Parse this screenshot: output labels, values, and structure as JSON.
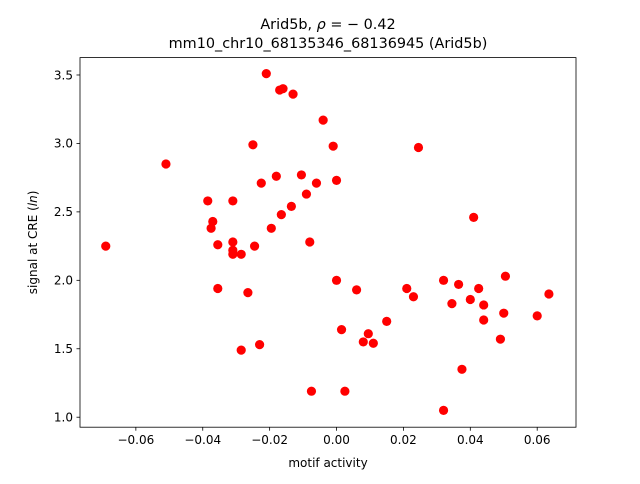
{
  "chart_data": {
    "type": "scatter",
    "title": "Arid5b, ρ = − 0.42",
    "subtitle": "mm10_chr10_68135346_68136945 (Arid5b)",
    "xlabel": "motif activity",
    "ylabel": "signal at CRE (ln)",
    "xlim": [
      -0.0767,
      0.0716
    ],
    "ylim": [
      0.927,
      3.627
    ],
    "xticks": [
      -0.06,
      -0.04,
      -0.02,
      0.0,
      0.02,
      0.04,
      0.06
    ],
    "xtick_labels": [
      "−0.06",
      "−0.04",
      "−0.02",
      "0.00",
      "0.02",
      "0.04",
      "0.06"
    ],
    "yticks": [
      1.0,
      1.5,
      2.0,
      2.5,
      3.0,
      3.5
    ],
    "ytick_labels": [
      "1.0",
      "1.5",
      "2.0",
      "2.5",
      "3.0",
      "3.5"
    ],
    "grid": false,
    "marker_color": "#ff0000",
    "points": [
      {
        "x": -0.069,
        "y": 2.25
      },
      {
        "x": -0.051,
        "y": 2.85
      },
      {
        "x": -0.0385,
        "y": 2.58
      },
      {
        "x": -0.0375,
        "y": 2.38
      },
      {
        "x": -0.037,
        "y": 2.43
      },
      {
        "x": -0.0355,
        "y": 2.26
      },
      {
        "x": -0.0355,
        "y": 1.94
      },
      {
        "x": -0.031,
        "y": 2.58
      },
      {
        "x": -0.031,
        "y": 2.28
      },
      {
        "x": -0.031,
        "y": 2.22
      },
      {
        "x": -0.031,
        "y": 2.19
      },
      {
        "x": -0.0285,
        "y": 2.19
      },
      {
        "x": -0.0285,
        "y": 1.49
      },
      {
        "x": -0.0265,
        "y": 1.91
      },
      {
        "x": -0.025,
        "y": 2.99
      },
      {
        "x": -0.0245,
        "y": 2.25
      },
      {
        "x": -0.023,
        "y": 1.53
      },
      {
        "x": -0.0225,
        "y": 2.71
      },
      {
        "x": -0.021,
        "y": 3.51
      },
      {
        "x": -0.0195,
        "y": 2.38
      },
      {
        "x": -0.018,
        "y": 2.76
      },
      {
        "x": -0.017,
        "y": 3.39
      },
      {
        "x": -0.0165,
        "y": 2.48
      },
      {
        "x": -0.016,
        "y": 3.4
      },
      {
        "x": -0.0135,
        "y": 2.54
      },
      {
        "x": -0.013,
        "y": 3.36
      },
      {
        "x": -0.0105,
        "y": 2.77
      },
      {
        "x": -0.009,
        "y": 2.63
      },
      {
        "x": -0.008,
        "y": 2.28
      },
      {
        "x": -0.0075,
        "y": 1.19
      },
      {
        "x": -0.006,
        "y": 2.71
      },
      {
        "x": -0.004,
        "y": 3.17
      },
      {
        "x": -0.001,
        "y": 2.98
      },
      {
        "x": 0.0,
        "y": 2.73
      },
      {
        "x": 0.0,
        "y": 2.0
      },
      {
        "x": 0.0015,
        "y": 1.64
      },
      {
        "x": 0.0025,
        "y": 1.19
      },
      {
        "x": 0.006,
        "y": 1.93
      },
      {
        "x": 0.008,
        "y": 1.55
      },
      {
        "x": 0.0095,
        "y": 1.61
      },
      {
        "x": 0.011,
        "y": 1.54
      },
      {
        "x": 0.015,
        "y": 1.7
      },
      {
        "x": 0.021,
        "y": 1.94
      },
      {
        "x": 0.023,
        "y": 1.88
      },
      {
        "x": 0.0245,
        "y": 2.97
      },
      {
        "x": 0.032,
        "y": 2.0
      },
      {
        "x": 0.032,
        "y": 1.05
      },
      {
        "x": 0.0345,
        "y": 1.83
      },
      {
        "x": 0.0365,
        "y": 1.97
      },
      {
        "x": 0.0375,
        "y": 1.35
      },
      {
        "x": 0.04,
        "y": 1.86
      },
      {
        "x": 0.041,
        "y": 2.46
      },
      {
        "x": 0.0425,
        "y": 1.94
      },
      {
        "x": 0.044,
        "y": 1.82
      },
      {
        "x": 0.044,
        "y": 1.71
      },
      {
        "x": 0.049,
        "y": 1.57
      },
      {
        "x": 0.05,
        "y": 1.76
      },
      {
        "x": 0.0505,
        "y": 2.03
      },
      {
        "x": 0.06,
        "y": 1.74
      },
      {
        "x": 0.0635,
        "y": 1.9
      }
    ]
  }
}
